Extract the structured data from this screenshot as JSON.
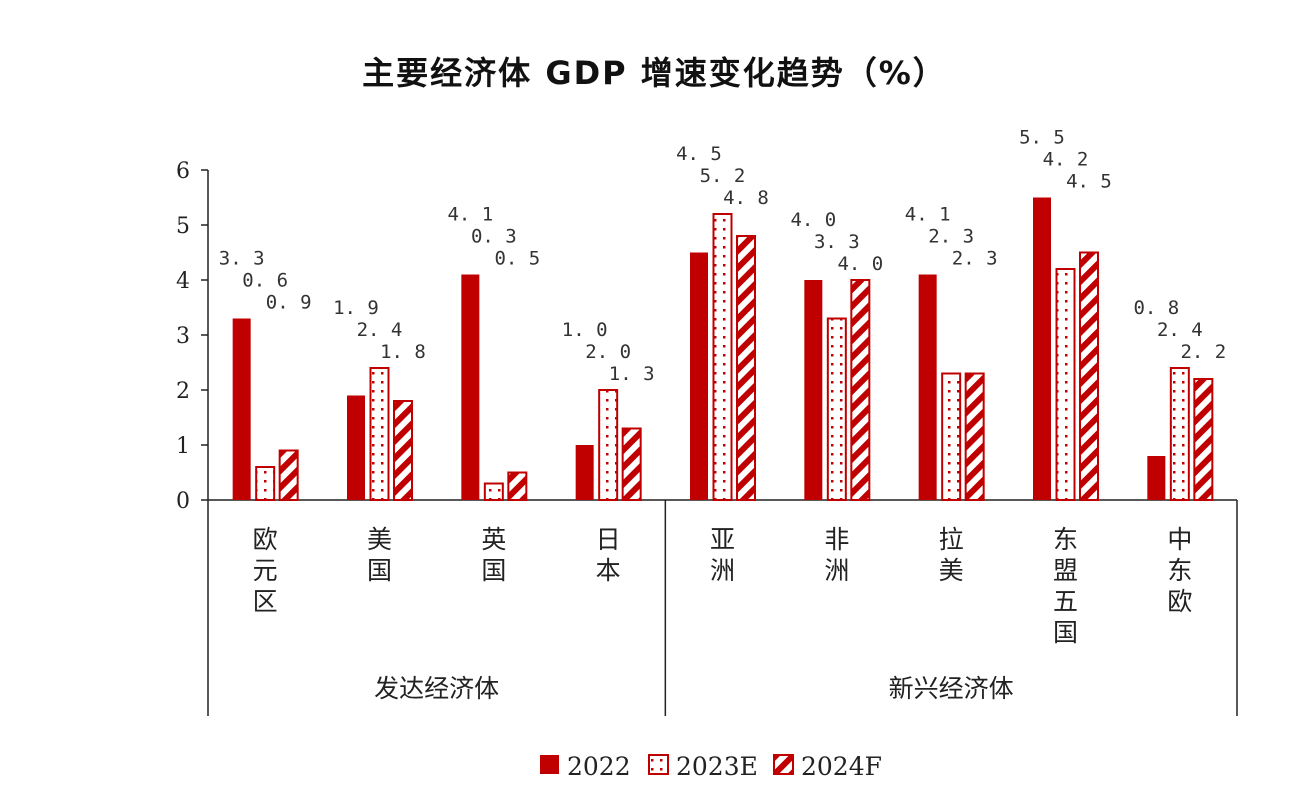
{
  "chart_data": {
    "type": "bar",
    "title": "主要经济体 GDP 增速变化趋势（%）",
    "categories": [
      "欧元区",
      "美国",
      "英国",
      "日本",
      "亚洲",
      "非洲",
      "拉美",
      "东盟五国",
      "中东欧"
    ],
    "groups": [
      {
        "label": "发达经济体",
        "categories": [
          "欧元区",
          "美国",
          "英国",
          "日本"
        ]
      },
      {
        "label": "新兴经济体",
        "categories": [
          "亚洲",
          "非洲",
          "拉美",
          "东盟五国",
          "中东欧"
        ]
      }
    ],
    "series": [
      {
        "name": "2022",
        "pattern": "solid",
        "values": [
          3.3,
          1.9,
          4.1,
          1.0,
          4.5,
          4.0,
          4.1,
          5.5,
          0.8
        ]
      },
      {
        "name": "2023E",
        "pattern": "dots",
        "values": [
          0.6,
          2.4,
          0.3,
          2.0,
          5.2,
          3.3,
          2.3,
          4.2,
          2.4
        ]
      },
      {
        "name": "2024F",
        "pattern": "diagonal-stripes",
        "values": [
          0.9,
          1.8,
          0.5,
          1.3,
          4.8,
          4.0,
          2.3,
          4.5,
          2.2
        ]
      }
    ],
    "yticks": [
      0,
      1,
      2,
      3,
      4,
      5,
      6
    ],
    "ylim": [
      0,
      6
    ],
    "grid": false,
    "legend_position": "bottom",
    "color": "#c00000"
  }
}
